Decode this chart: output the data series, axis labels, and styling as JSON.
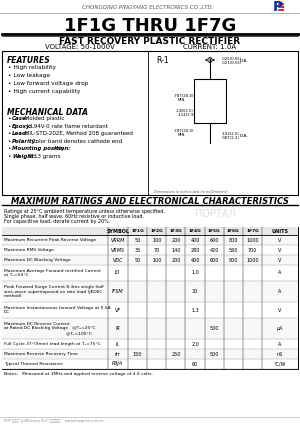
{
  "company": "CHONGQING PINGYANG ELECTRONICS CO.,LTD.",
  "title": "1F1G THRU 1F7G",
  "subtitle": "FAST RECOVERY PLASTIC RECTIFIER",
  "voltage": "VOLTAGE: 50-1000V",
  "current": "CURRENT: 1.0A",
  "features_title": "FEATURES",
  "features": [
    "High reliability",
    "Low leakage",
    "Low forward voltage drop",
    "High current capability"
  ],
  "mech_title": "MECHANICAL DATA",
  "mech_data": [
    [
      "Case:",
      " Molded plastic"
    ],
    [
      "Epoxy:",
      " UL94V-0 rate flame retardant"
    ],
    [
      "Lead:",
      " MIL-STD-202E, Method 208 guaranteed"
    ],
    [
      "Polarity:",
      "Color band denotes cathode end"
    ],
    [
      "Mounting position:",
      " Any"
    ],
    [
      "Weight:",
      " 0.13 grams"
    ]
  ],
  "pkg_label": "R-1",
  "dim_note": "Dimensions in inches and (in millimeters)",
  "ratings_title": "MAXIMUM RATINGS AND ELECTRONICAL CHARACTERISTICS",
  "ratings_note1": "Ratings at 25°C ambient temperature unless otherwise specified.",
  "ratings_note2": "Single phase, half wave, 60Hz resistive or inductive load.",
  "ratings_note3": "For capacitive load, derate current by 20%.",
  "table_col_headers": [
    "SYMBOL",
    "1F1G",
    "1F2G",
    "1F3G",
    "1F4G",
    "1F5G",
    "1F6G",
    "1F7G",
    "UNITS"
  ],
  "row_defs": [
    {
      "param": "Maximum Recurrent Peak Reverse Voltage",
      "sym": "VRRM",
      "vals": [
        "50",
        "100",
        "200",
        "400",
        "600",
        "800",
        "1000"
      ],
      "unit": "V",
      "nlines": 1
    },
    {
      "param": "Maximum RMS Voltage",
      "sym": "VRMS",
      "vals": [
        "35",
        "70",
        "140",
        "280",
        "420",
        "560",
        "700"
      ],
      "unit": "V",
      "nlines": 1
    },
    {
      "param": "Maximum DC Blocking Voltage",
      "sym": "VDC",
      "vals": [
        "50",
        "100",
        "200",
        "400",
        "600",
        "800",
        "1000"
      ],
      "unit": "V",
      "nlines": 1
    },
    {
      "param": "Maximum Average Forward rectified Current\nat Tₐ=50°C",
      "sym": "IO",
      "vals": [
        "",
        "",
        "",
        "1.0",
        "",
        "",
        ""
      ],
      "unit": "A",
      "nlines": 2
    },
    {
      "param": "Peak Forward Surge Current 8.3ms single half\nsine-wave superimposed on rate load (JEDEC\nmethod)",
      "sym": "IFSM",
      "vals": [
        "",
        "",
        "",
        "30",
        "",
        "",
        ""
      ],
      "unit": "A",
      "nlines": 3
    },
    {
      "param": "Maximum Instantaneous forward Voltage at 0.5A\nDC",
      "sym": "VF",
      "vals": [
        "",
        "",
        "",
        "1.3",
        "",
        "",
        ""
      ],
      "unit": "V",
      "nlines": 2
    },
    {
      "param": "Maximum DC Reverse Current\nat Rated DC Blocking Voltage   @Tₐ=25°C\n                                             @Tₐ=100°C",
      "sym": "IR",
      "vals": [
        "",
        "",
        "",
        "",
        "500",
        "",
        ""
      ],
      "unit": "μA",
      "nlines": 3
    },
    {
      "param": "Full Cycle 37°(9mm) lead length at Tₐ=75°C",
      "sym": "IL",
      "vals": [
        "",
        "",
        "",
        "2.0",
        "",
        "",
        ""
      ],
      "unit": "A",
      "nlines": 1
    },
    {
      "param": "Maximum Reverse Recovery Time",
      "sym": "trr",
      "vals": [
        "150",
        "",
        "250",
        "",
        "500",
        "",
        ""
      ],
      "unit": "nS",
      "nlines": 1
    },
    {
      "param": "Typical Thermal Resistance",
      "sym": "RθJA",
      "vals": [
        "",
        "",
        "",
        "60",
        "",
        "",
        ""
      ],
      "unit": "°C/W",
      "nlines": 1
    }
  ],
  "notes": "Notes:   Measured at 1MHz and applied reverse voltage of 4.0 volts.",
  "bg_color": "#ffffff"
}
